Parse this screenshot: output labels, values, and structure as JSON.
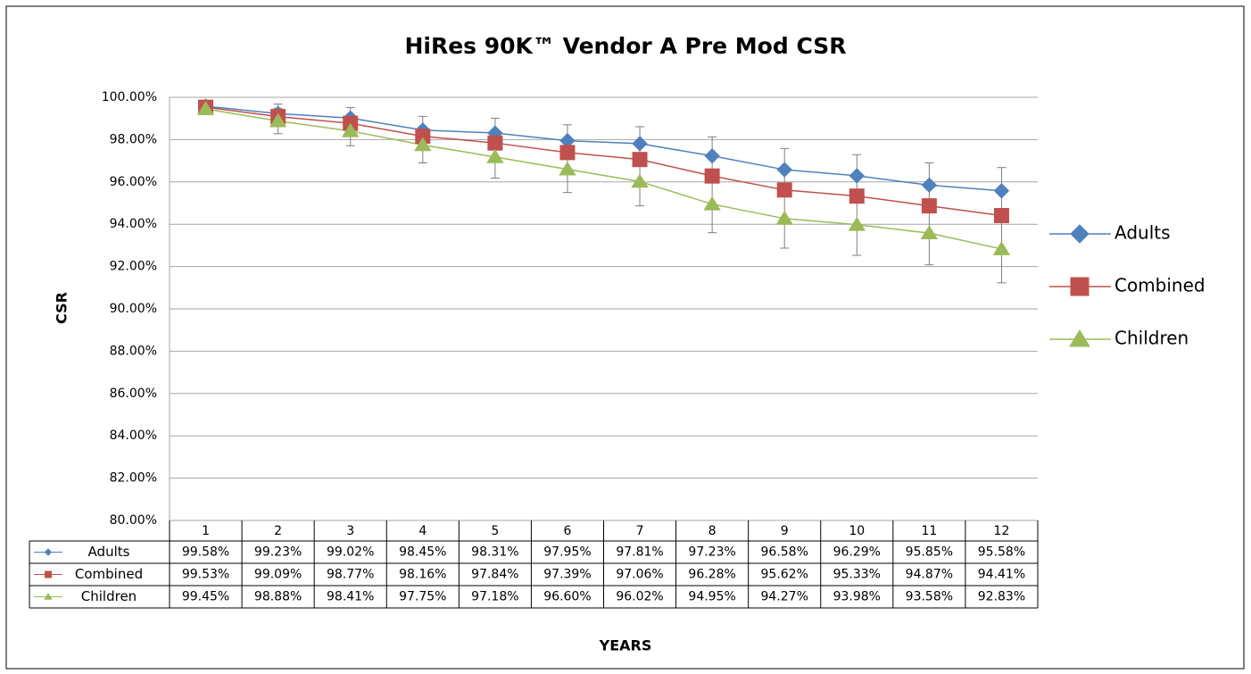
{
  "chart_data": {
    "type": "line",
    "title": "HiRes 90K™ Vendor A Pre Mod CSR",
    "y_label": "CSR",
    "x_label": "YEARS",
    "categories": [
      "1",
      "2",
      "3",
      "4",
      "5",
      "6",
      "7",
      "8",
      "9",
      "10",
      "11",
      "12"
    ],
    "series": [
      {
        "name": "Adults",
        "color": "#4f81bd",
        "marker": "diamond",
        "values": [
          99.58,
          99.23,
          99.02,
          98.45,
          98.31,
          97.95,
          97.81,
          97.23,
          96.58,
          96.29,
          95.85,
          95.58
        ],
        "value_labels": [
          "99.58%",
          "99.23%",
          "99.02%",
          "98.45%",
          "98.31%",
          "97.95%",
          "97.81%",
          "97.23%",
          "96.58%",
          "96.29%",
          "95.85%",
          "95.58%"
        ],
        "errors": [
          0.2,
          0.45,
          0.5,
          0.65,
          0.7,
          0.75,
          0.8,
          0.9,
          1.0,
          1.0,
          1.05,
          1.1
        ]
      },
      {
        "name": "Combined",
        "color": "#c0504d",
        "marker": "square",
        "values": [
          99.53,
          99.09,
          98.77,
          98.16,
          97.84,
          97.39,
          97.06,
          96.28,
          95.62,
          95.33,
          94.87,
          94.41
        ],
        "value_labels": [
          "99.53%",
          "99.09%",
          "98.77%",
          "98.16%",
          "97.84%",
          "97.39%",
          "97.06%",
          "96.28%",
          "95.62%",
          "95.33%",
          "94.87%",
          "94.41%"
        ]
      },
      {
        "name": "Children",
        "color": "#9bbb59",
        "marker": "triangle",
        "values": [
          99.45,
          98.88,
          98.41,
          97.75,
          97.18,
          96.6,
          96.02,
          94.95,
          94.27,
          93.98,
          93.58,
          92.83
        ],
        "value_labels": [
          "99.45%",
          "98.88%",
          "98.41%",
          "97.75%",
          "97.18%",
          "96.60%",
          "96.02%",
          "94.95%",
          "94.27%",
          "93.98%",
          "93.58%",
          "92.83%"
        ],
        "errors": [
          0.25,
          0.6,
          0.7,
          0.85,
          1.0,
          1.1,
          1.15,
          1.35,
          1.4,
          1.45,
          1.5,
          1.6
        ]
      }
    ],
    "ylim": [
      80,
      100
    ],
    "yticks": [
      {
        "value": 80,
        "label": "80.00%"
      },
      {
        "value": 82,
        "label": "82.00%"
      },
      {
        "value": 84,
        "label": "84.00%"
      },
      {
        "value": 86,
        "label": "86.00%"
      },
      {
        "value": 88,
        "label": "88.00%"
      },
      {
        "value": 90,
        "label": "90.00%"
      },
      {
        "value": 92,
        "label": "92.00%"
      },
      {
        "value": 94,
        "label": "94.00%"
      },
      {
        "value": 96,
        "label": "96.00%"
      },
      {
        "value": 98,
        "label": "98.00%"
      },
      {
        "value": 100,
        "label": "100.00%"
      }
    ],
    "grid": true,
    "legend": "right",
    "data_table": true
  }
}
